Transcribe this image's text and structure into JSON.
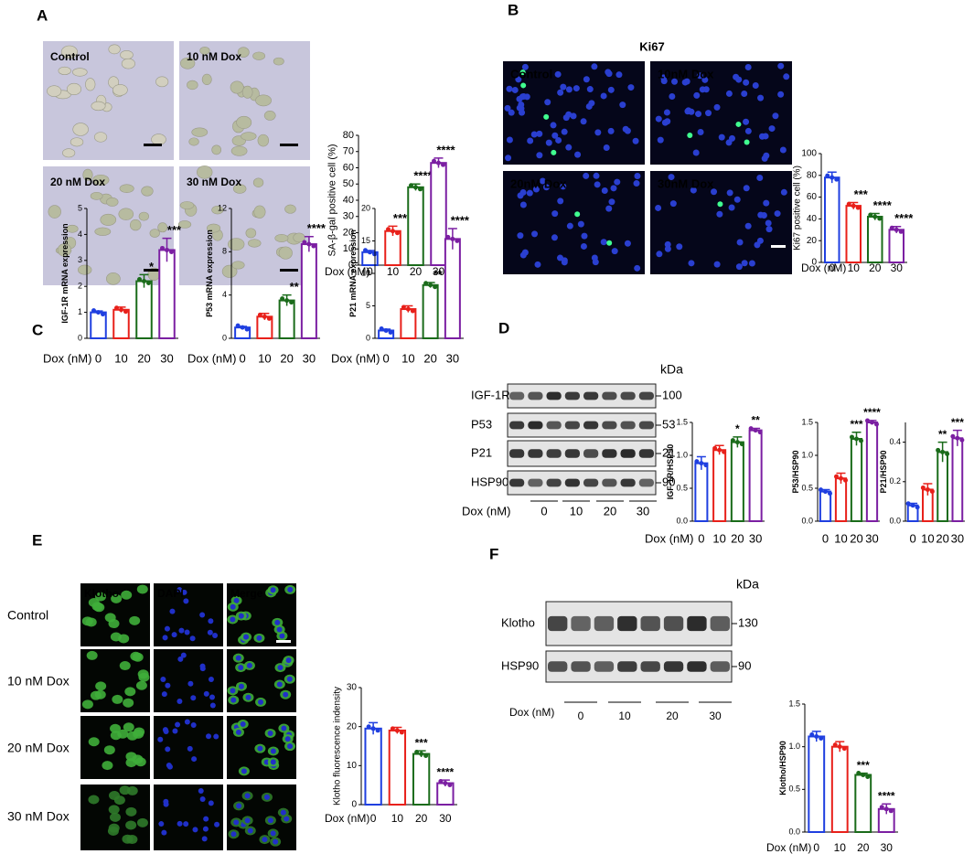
{
  "panel_labels": [
    "A",
    "B",
    "C",
    "D",
    "E",
    "F"
  ],
  "figure": {
    "a_images": [
      "Control",
      "10 nM Dox",
      "20 nM Dox",
      "30 nM Dox"
    ],
    "b_title": "Ki67",
    "b_images": [
      "Control",
      "10nM Dox",
      "20nM Dox",
      "30nM Dox"
    ],
    "d_blot": {
      "unit": "kDa",
      "proteins": [
        "IGF-1R",
        "P53",
        "P21",
        "HSP90"
      ],
      "sizes": [
        100,
        53,
        21,
        90
      ],
      "x_label": "Dox (nM)",
      "doses": [
        0,
        10,
        20,
        30
      ]
    },
    "e_images": {
      "stains": [
        "Klotho",
        "DAPI",
        "Merge"
      ],
      "conditions": [
        "Control",
        "10 nM Dox",
        "20 nM Dox",
        "30 nM Dox"
      ]
    },
    "f_blot": {
      "unit": "kDa",
      "proteins": [
        "Klotho",
        "HSP90"
      ],
      "sizes": [
        130,
        90
      ],
      "x_label": "Dox (nM)",
      "doses": [
        0,
        10,
        20,
        30
      ]
    }
  },
  "chart_data": [
    {
      "type": "bar",
      "y_label": "SA-β-gal positive cell (%)",
      "x_label": "Dox (nM)",
      "categories": [
        "0",
        "10",
        "20",
        "30"
      ],
      "values": [
        8,
        21,
        48,
        63
      ],
      "errors": [
        1,
        3,
        2,
        3
      ],
      "significance": [
        null,
        "***",
        "****",
        "****"
      ],
      "colors": [
        "#1f3fe0",
        "#e8201a",
        "#1a6b1a",
        "#7b1fa2"
      ],
      "ylim": [
        0,
        80
      ],
      "yticks": [
        0,
        10,
        20,
        30,
        40,
        50,
        60,
        70,
        80
      ]
    },
    {
      "type": "bar",
      "y_label": "Ki67 positive cell (%)",
      "x_label": "Dox (nM)",
      "categories": [
        "0",
        "10",
        "20",
        "30"
      ],
      "values": [
        78,
        52,
        42,
        30
      ],
      "errors": [
        5,
        3,
        3,
        3
      ],
      "significance": [
        null,
        "***",
        "****",
        "****"
      ],
      "colors": [
        "#1f3fe0",
        "#e8201a",
        "#1a6b1a",
        "#7b1fa2"
      ],
      "ylim": [
        0,
        100
      ],
      "yticks": [
        0,
        20,
        40,
        60,
        80,
        100
      ]
    },
    {
      "type": "bar",
      "y_label": "IGF-1R mRNA expression",
      "x_label": "Dox (nM)",
      "categories": [
        "0",
        "10",
        "20",
        "30"
      ],
      "values": [
        1,
        1.1,
        2.2,
        3.4
      ],
      "errors": [
        0.05,
        0.1,
        0.25,
        0.45
      ],
      "significance": [
        null,
        null,
        "*",
        "***"
      ],
      "colors": [
        "#1f3fe0",
        "#e8201a",
        "#1a6b1a",
        "#7b1fa2"
      ],
      "ylim": [
        0,
        5
      ],
      "yticks": [
        0,
        1,
        2,
        3,
        4,
        5
      ]
    },
    {
      "type": "bar",
      "y_label": "P53 mRNA expression",
      "x_label": "Dox (nM)",
      "categories": [
        "0",
        "10",
        "20",
        "30"
      ],
      "values": [
        1,
        2,
        3.5,
        8.7
      ],
      "errors": [
        0.1,
        0.3,
        0.5,
        0.7
      ],
      "significance": [
        null,
        null,
        "**",
        "****"
      ],
      "colors": [
        "#1f3fe0",
        "#e8201a",
        "#1a6b1a",
        "#7b1fa2"
      ],
      "ylim": [
        0,
        12
      ],
      "yticks": [
        0,
        4,
        8,
        12
      ]
    },
    {
      "type": "bar",
      "y_label": "P21 mRNA expression",
      "x_label": "Dox (nM)",
      "categories": [
        "0",
        "10",
        "20",
        "30"
      ],
      "values": [
        1.2,
        4.5,
        8.2,
        15.3
      ],
      "errors": [
        0.2,
        0.5,
        0.4,
        1.6
      ],
      "significance": [
        null,
        null,
        "**",
        "****"
      ],
      "colors": [
        "#1f3fe0",
        "#e8201a",
        "#1a6b1a",
        "#7b1fa2"
      ],
      "ylim": [
        0,
        20
      ],
      "yticks": [
        0,
        5,
        10,
        15,
        20
      ]
    },
    {
      "type": "bar",
      "y_label": "IGF-1R/HSP90",
      "x_label": "Dox (nM)",
      "categories": [
        "0",
        "10",
        "20",
        "30"
      ],
      "values": [
        0.88,
        1.08,
        1.2,
        1.38
      ],
      "errors": [
        0.1,
        0.07,
        0.08,
        0.03
      ],
      "significance": [
        null,
        null,
        "*",
        "**"
      ],
      "colors": [
        "#1f3fe0",
        "#e8201a",
        "#1a6b1a",
        "#7b1fa2"
      ],
      "ylim": [
        0,
        1.5
      ],
      "yticks": [
        {
          "value": 0,
          "label": "0.0"
        },
        0.5,
        {
          "value": 1,
          "label": "1.0"
        },
        1.5
      ]
    },
    {
      "type": "bar",
      "y_label": "P53/HSP90",
      "x_label": "Dox (nM)",
      "categories": [
        "0",
        "10",
        "20",
        "30"
      ],
      "values": [
        0.45,
        0.65,
        1.25,
        1.5
      ],
      "errors": [
        0.03,
        0.08,
        0.1,
        0.03
      ],
      "significance": [
        null,
        null,
        "***",
        "****"
      ],
      "colors": [
        "#1f3fe0",
        "#e8201a",
        "#1a6b1a",
        "#7b1fa2"
      ],
      "ylim": [
        0,
        1.5
      ],
      "yticks": [
        {
          "value": 0,
          "label": "0.0"
        },
        0.5,
        {
          "value": 1,
          "label": "1.0"
        },
        1.5
      ]
    },
    {
      "type": "bar",
      "y_label": "P21/HSP90",
      "x_label": "Dox (nM)",
      "categories": [
        "0",
        "10",
        "20",
        "30"
      ],
      "values": [
        0.08,
        0.16,
        0.35,
        0.42
      ],
      "errors": [
        0.01,
        0.03,
        0.05,
        0.04
      ],
      "significance": [
        null,
        null,
        "**",
        "***"
      ],
      "colors": [
        "#1f3fe0",
        "#e8201a",
        "#1a6b1a",
        "#7b1fa2"
      ],
      "ylim": [
        0,
        0.5
      ],
      "yticks": [
        {
          "value": 0,
          "label": "0.0"
        },
        0.2,
        0.4
      ]
    },
    {
      "type": "bar",
      "y_label": "Klotho fluorescence indensity",
      "x_label": "Dox (nM)",
      "categories": [
        "0",
        "10",
        "20",
        "30"
      ],
      "values": [
        19.5,
        19,
        13,
        5.5
      ],
      "errors": [
        1.5,
        0.8,
        0.8,
        0.8
      ],
      "significance": [
        null,
        null,
        "***",
        "****"
      ],
      "colors": [
        "#1f3fe0",
        "#e8201a",
        "#1a6b1a",
        "#7b1fa2"
      ],
      "ylim": [
        0,
        30
      ],
      "yticks": [
        0,
        10,
        20,
        30
      ]
    },
    {
      "type": "bar",
      "y_label": "Klotho/HSP90",
      "x_label": "Dox (nM)",
      "categories": [
        "0",
        "10",
        "20",
        "30"
      ],
      "values": [
        1.12,
        1.0,
        0.67,
        0.27
      ],
      "errors": [
        0.06,
        0.06,
        0.02,
        0.06
      ],
      "significance": [
        null,
        null,
        "***",
        "****"
      ],
      "colors": [
        "#1f3fe0",
        "#e8201a",
        "#1a6b1a",
        "#7b1fa2"
      ],
      "ylim": [
        0,
        1.5
      ],
      "yticks": [
        {
          "value": 0,
          "label": "0.0"
        },
        0.5,
        {
          "value": 1,
          "label": "1.0"
        },
        1.5
      ]
    }
  ]
}
